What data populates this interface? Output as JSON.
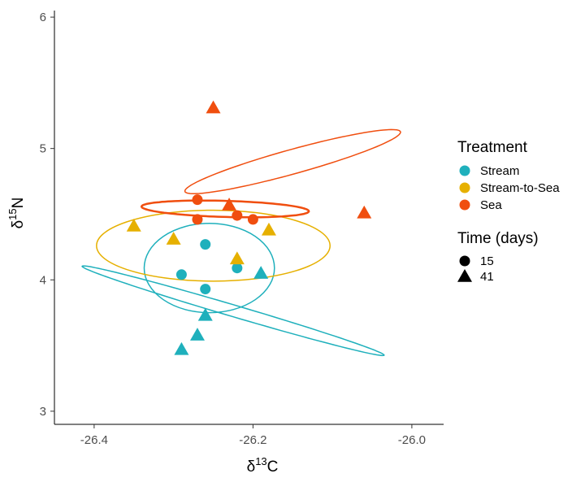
{
  "chart_data": {
    "type": "scatter",
    "title": "",
    "xlabel": {
      "prefix": "δ",
      "sup": "13",
      "suffix": "C"
    },
    "ylabel": {
      "prefix": "δ",
      "sup": "15",
      "suffix": "N"
    },
    "xlim": [
      -26.45,
      -25.96
    ],
    "ylim": [
      2.9,
      6.05
    ],
    "x_ticks": [
      -26.4,
      -26.2,
      -26.0
    ],
    "x_tick_labels": [
      "-26.4",
      "-26.2",
      "-26.0"
    ],
    "y_ticks": [
      3,
      4,
      5,
      6
    ],
    "y_tick_labels": [
      "3",
      "4",
      "5",
      "6"
    ],
    "grid": false,
    "legend_position": "right",
    "legends": {
      "color": {
        "title": "Treatment",
        "entries": [
          {
            "label": "Stream",
            "color": "#1fb0bc"
          },
          {
            "label": "Stream-to-Sea",
            "color": "#e6b000"
          },
          {
            "label": "Sea",
            "color": "#f04e0f"
          }
        ]
      },
      "shape": {
        "title": "Time (days)",
        "entries": [
          {
            "label": "15",
            "shape": "circle"
          },
          {
            "label": "41",
            "shape": "triangle"
          }
        ]
      }
    },
    "series": [
      {
        "treatment": "Stream",
        "time": "15",
        "color": "#1fb0bc",
        "shape": "circle",
        "points": [
          [
            -26.26,
            4.27
          ],
          [
            -26.29,
            4.04
          ],
          [
            -26.26,
            3.93
          ],
          [
            -26.22,
            4.09
          ]
        ]
      },
      {
        "treatment": "Stream",
        "time": "41",
        "color": "#1fb0bc",
        "shape": "triangle",
        "points": [
          [
            -26.26,
            3.73
          ],
          [
            -26.27,
            3.58
          ],
          [
            -26.29,
            3.47
          ],
          [
            -26.19,
            4.05
          ]
        ]
      },
      {
        "treatment": "Stream-to-Sea",
        "time": "41",
        "color": "#e6b000",
        "shape": "triangle",
        "points": [
          [
            -26.35,
            4.41
          ],
          [
            -26.3,
            4.31
          ],
          [
            -26.22,
            4.16
          ],
          [
            -26.18,
            4.38
          ]
        ]
      },
      {
        "treatment": "Sea",
        "time": "15",
        "color": "#f04e0f",
        "shape": "circle",
        "points": [
          [
            -26.27,
            4.61
          ],
          [
            -26.27,
            4.46
          ],
          [
            -26.22,
            4.49
          ],
          [
            -26.2,
            4.46
          ]
        ]
      },
      {
        "treatment": "Sea",
        "time": "41",
        "color": "#f04e0f",
        "shape": "triangle",
        "points": [
          [
            -26.25,
            5.31
          ],
          [
            -26.23,
            4.57
          ],
          [
            -26.06,
            4.51
          ]
        ]
      }
    ],
    "ellipses": [
      {
        "treatment": "Stream",
        "time": "15",
        "color": "#1fb0bc",
        "cx": -26.255,
        "cy": 4.09,
        "rx": 0.082,
        "ry": 0.34,
        "angle_deg": 0,
        "stroke_width": 1.5
      },
      {
        "treatment": "Stream",
        "time": "41",
        "color": "#1fb0bc",
        "cx": -26.225,
        "cy": 3.765,
        "major": 0.78,
        "minor": 0.045,
        "slope_deg": -61,
        "stroke_width": 1.5
      },
      {
        "treatment": "Stream-to-Sea",
        "time": "41",
        "color": "#e6b000",
        "cx": -26.25,
        "cy": 4.26,
        "rx": 0.147,
        "ry": 0.27,
        "angle_deg": 0,
        "stroke_width": 1.5
      },
      {
        "treatment": "Sea",
        "time": "15",
        "color": "#f04e0f",
        "cx": -26.235,
        "cy": 4.54,
        "major": 0.215,
        "minor": 0.12,
        "slope_deg": -14,
        "stroke_width": 2.5
      },
      {
        "treatment": "Sea",
        "time": "41",
        "color": "#f04e0f",
        "cx": -26.15,
        "cy": 4.9,
        "major": 0.095,
        "minor": 0.55,
        "slope_deg": -28,
        "stroke_width": 1.5
      }
    ]
  }
}
